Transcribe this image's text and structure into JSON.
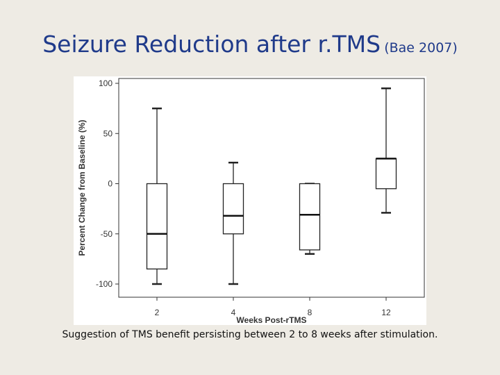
{
  "slide": {
    "title_main": "Seizure Reduction after r.TMS",
    "title_sub": "(Bae 2007)",
    "caption": "Suggestion of TMS benefit persisting between 2 to 8 weeks after stimulation."
  },
  "chart_data": {
    "type": "box",
    "title": "",
    "xlabel": "Weeks Post-rTMS",
    "ylabel": "Percent Change from Baseline (%)",
    "ylim": [
      -100,
      100
    ],
    "yticks": [
      100,
      50,
      0,
      -50,
      -100
    ],
    "grid": false,
    "categories": [
      "2",
      "4",
      "8",
      "12"
    ],
    "boxes": [
      {
        "category": "2",
        "min": -100,
        "q1": -85,
        "median": -50,
        "q3": 0,
        "max": 75
      },
      {
        "category": "4",
        "min": -100,
        "q1": -50,
        "median": -32,
        "q3": 0,
        "max": 21
      },
      {
        "category": "8",
        "min": -70,
        "q1": -66,
        "median": -31,
        "q3": 0,
        "max": 0
      },
      {
        "category": "12",
        "min": -29,
        "q1": -5,
        "median": 25,
        "q3": 25,
        "max": 95
      }
    ]
  }
}
